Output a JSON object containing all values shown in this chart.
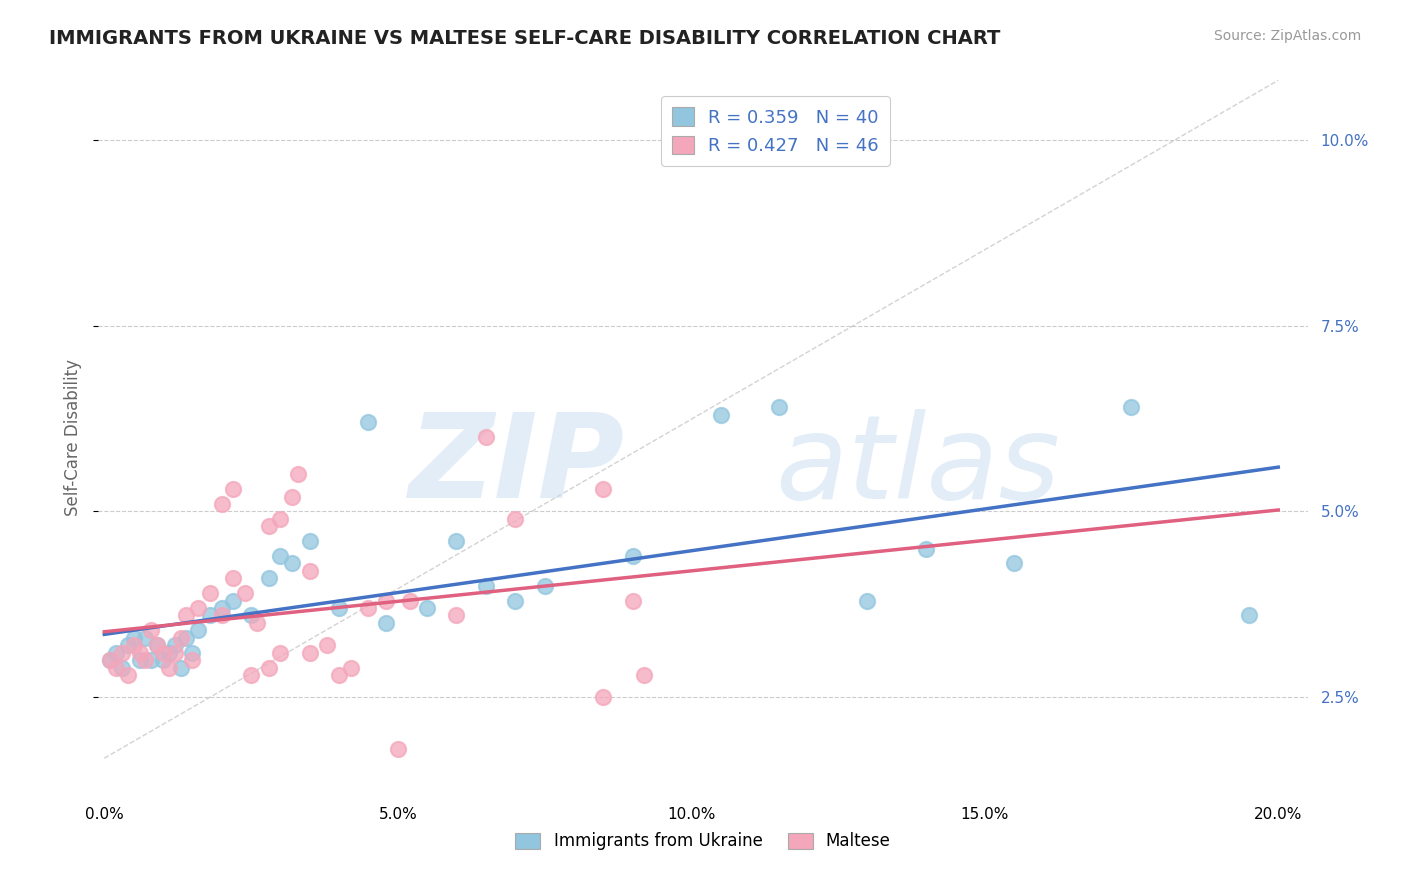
{
  "title": "IMMIGRANTS FROM UKRAINE VS MALTESE SELF-CARE DISABILITY CORRELATION CHART",
  "source": "Source: ZipAtlas.com",
  "ylabel": "Self-Care Disability",
  "xlim": [
    -0.001,
    0.205
  ],
  "ylim": [
    0.012,
    0.108
  ],
  "ukraine_color": "#92C5DE",
  "maltese_color": "#F4A6BA",
  "ukraine_line_color": "#4472C4",
  "maltese_line_color": "#E06080",
  "diag_line_color": "#C0C0C0",
  "ukraine_R": "0.359",
  "ukraine_N": "40",
  "maltese_R": "0.427",
  "maltese_N": "46",
  "legend_label_ukraine": "Immigrants from Ukraine",
  "legend_label_maltese": "Maltese",
  "ukraine_x": [
    0.001,
    0.002,
    0.003,
    0.004,
    0.005,
    0.006,
    0.007,
    0.008,
    0.009,
    0.01,
    0.011,
    0.012,
    0.013,
    0.014,
    0.015,
    0.016,
    0.018,
    0.02,
    0.022,
    0.025,
    0.028,
    0.03,
    0.032,
    0.035,
    0.04,
    0.045,
    0.048,
    0.055,
    0.06,
    0.065,
    0.07,
    0.075,
    0.09,
    0.105,
    0.115,
    0.13,
    0.14,
    0.155,
    0.175,
    0.195
  ],
  "ukraine_y": [
    0.03,
    0.031,
    0.029,
    0.032,
    0.033,
    0.03,
    0.033,
    0.03,
    0.032,
    0.03,
    0.031,
    0.032,
    0.029,
    0.033,
    0.031,
    0.034,
    0.036,
    0.037,
    0.038,
    0.036,
    0.041,
    0.044,
    0.043,
    0.046,
    0.037,
    0.062,
    0.035,
    0.037,
    0.046,
    0.04,
    0.038,
    0.04,
    0.044,
    0.063,
    0.064,
    0.038,
    0.045,
    0.043,
    0.064,
    0.036
  ],
  "maltese_x": [
    0.001,
    0.002,
    0.003,
    0.004,
    0.005,
    0.006,
    0.007,
    0.008,
    0.009,
    0.01,
    0.011,
    0.012,
    0.013,
    0.014,
    0.015,
    0.016,
    0.018,
    0.02,
    0.022,
    0.024,
    0.026,
    0.028,
    0.03,
    0.032,
    0.033,
    0.035,
    0.02,
    0.022,
    0.025,
    0.028,
    0.03,
    0.035,
    0.038,
    0.04,
    0.042,
    0.045,
    0.048,
    0.052,
    0.06,
    0.065,
    0.07,
    0.085,
    0.09,
    0.092,
    0.05,
    0.085
  ],
  "maltese_y": [
    0.03,
    0.029,
    0.031,
    0.028,
    0.032,
    0.031,
    0.03,
    0.034,
    0.032,
    0.031,
    0.029,
    0.031,
    0.033,
    0.036,
    0.03,
    0.037,
    0.039,
    0.036,
    0.041,
    0.039,
    0.035,
    0.048,
    0.049,
    0.052,
    0.055,
    0.042,
    0.051,
    0.053,
    0.028,
    0.029,
    0.031,
    0.031,
    0.032,
    0.028,
    0.029,
    0.037,
    0.038,
    0.038,
    0.036,
    0.06,
    0.049,
    0.053,
    0.038,
    0.028,
    0.018,
    0.025
  ],
  "background_color": "#FFFFFF"
}
